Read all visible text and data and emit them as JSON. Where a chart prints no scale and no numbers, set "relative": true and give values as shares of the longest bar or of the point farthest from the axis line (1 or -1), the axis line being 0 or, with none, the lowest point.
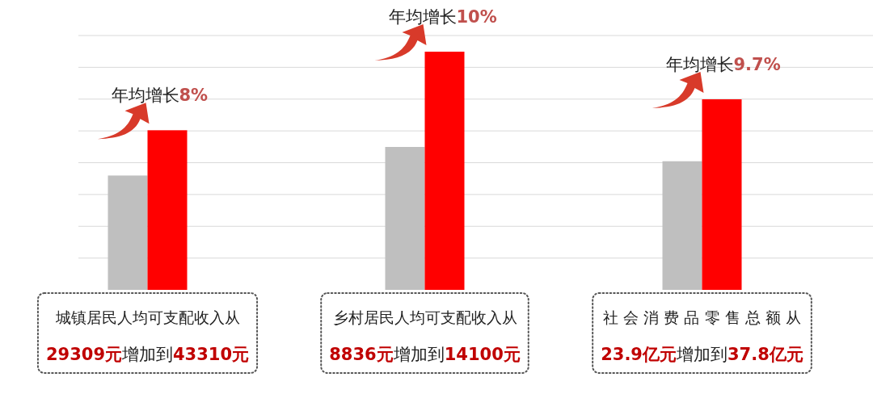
{
  "chart_data": {
    "type": "bar",
    "relative": true,
    "grid": "y",
    "categories": [
      null,
      null,
      null
    ],
    "series": [
      {
        "color": "#bfbfbf",
        "values": [
          0.48,
          0.6,
          0.54
        ]
      },
      {
        "color": "#ff0000",
        "values": [
          0.67,
          1,
          0.8
        ]
      }
    ],
    "annotations": [
      "年均增长",
      "8%",
      "城镇居民人均可支配收入从",
      "29309元",
      "增加到",
      "43310元",
      "年均增长",
      "10%",
      "乡村居民人均可支配收入从",
      "8836元",
      "增加到",
      "14100元",
      "年均增长",
      "9.7%",
      "社 会 消 费 品 零 售 总 额 从",
      "23.9亿元",
      "增加到",
      "37.8亿元"
    ]
  }
}
